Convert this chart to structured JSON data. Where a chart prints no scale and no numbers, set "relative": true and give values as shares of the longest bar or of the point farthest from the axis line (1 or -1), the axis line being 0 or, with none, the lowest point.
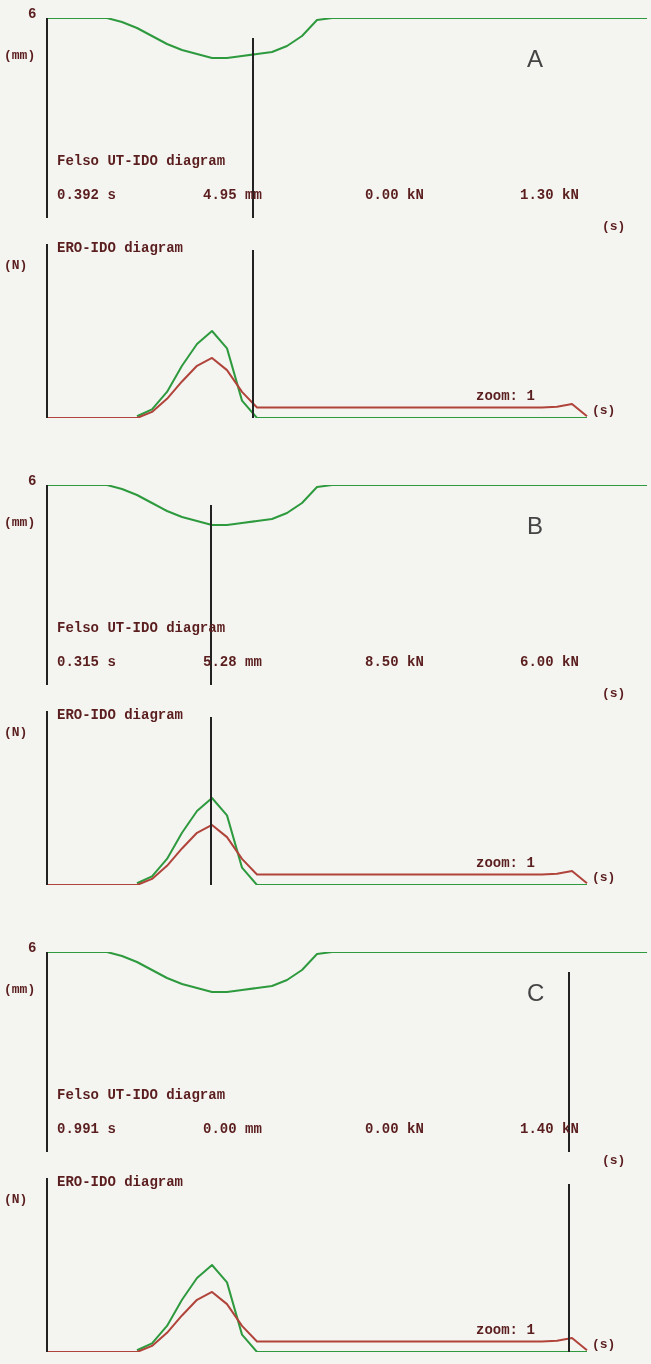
{
  "chart_data": [
    {
      "type": "line",
      "title": "Felso UT-IDO diagram",
      "xlabel": "(s)",
      "ylabel": "(mm)",
      "relative": true,
      "annotations": [
        "6",
        "A",
        "0.392 s",
        "4.95 mm",
        "0.00 kN",
        "1.30 kN"
      ],
      "categories": [
        null,
        null,
        null,
        null,
        null,
        null,
        null,
        null,
        null,
        null,
        null,
        null,
        null,
        null,
        null,
        null,
        null,
        null,
        null,
        null,
        null,
        null,
        null,
        null,
        null,
        null,
        null,
        null,
        null,
        null,
        null,
        null,
        null,
        null,
        null,
        null,
        null,
        null,
        null,
        null,
        null
      ],
      "series": [
        {
          "color": "#2e9a3e",
          "values": [
            1,
            1,
            1,
            1,
            1,
            0.98,
            0.95,
            0.91,
            0.87,
            0.84,
            0.82,
            0.8,
            0.8,
            0.81,
            0.82,
            0.83,
            0.86,
            0.91,
            0.99,
            1,
            1,
            1,
            1,
            1,
            1,
            1,
            1,
            1,
            1,
            1,
            1,
            1,
            1,
            1,
            1,
            1,
            1,
            1,
            1,
            1,
            1
          ]
        }
      ]
    },
    {
      "type": "line",
      "title": "ERO-IDO diagram",
      "xlabel": "(s)",
      "ylabel": "(N)",
      "relative": true,
      "annotations": [
        "zoom: 1"
      ],
      "categories": [
        null,
        null,
        null,
        null,
        null,
        null,
        null,
        null,
        null,
        null,
        null,
        null,
        null,
        null,
        null,
        null,
        null,
        null,
        null,
        null,
        null,
        null,
        null,
        null,
        null,
        null,
        null,
        null,
        null,
        null,
        null,
        null,
        null,
        null,
        null,
        null,
        null
      ],
      "series": [
        {
          "color": "#2e9a3e",
          "values": [
            null,
            null,
            null,
            null,
            null,
            null,
            0.02,
            0.1,
            0.3,
            0.6,
            0.85,
            1,
            0.8,
            0.2,
            0,
            0,
            0,
            0,
            0,
            0,
            0,
            0,
            0,
            0,
            0,
            0,
            0,
            0,
            0,
            0,
            0,
            0,
            0,
            0,
            0,
            0,
            0
          ]
        },
        {
          "color": "#b0443a",
          "values": [
            0,
            0,
            0,
            0,
            0,
            0,
            0,
            0.07,
            0.22,
            0.42,
            0.6,
            0.69,
            0.55,
            0.3,
            0.12,
            0.12,
            0.12,
            0.12,
            0.12,
            0.12,
            0.12,
            0.12,
            0.12,
            0.12,
            0.12,
            0.12,
            0.12,
            0.12,
            0.12,
            0.12,
            0.12,
            0.12,
            0.12,
            0.12,
            0.13,
            0.16,
            0.02
          ]
        }
      ]
    },
    {
      "type": "line",
      "title": "Felso UT-IDO diagram",
      "xlabel": "(s)",
      "ylabel": "(mm)",
      "relative": true,
      "annotations": [
        "6",
        "B",
        "0.315 s",
        "5.28 mm",
        "8.50 kN",
        "6.00 kN"
      ],
      "categories": [
        null,
        null,
        null,
        null,
        null,
        null,
        null,
        null,
        null,
        null,
        null,
        null,
        null,
        null,
        null,
        null,
        null,
        null,
        null,
        null,
        null,
        null,
        null,
        null,
        null,
        null,
        null,
        null,
        null,
        null,
        null,
        null,
        null,
        null,
        null,
        null,
        null,
        null,
        null,
        null,
        null
      ],
      "series": [
        {
          "color": "#2e9a3e",
          "values": [
            1,
            1,
            1,
            1,
            1,
            0.98,
            0.95,
            0.91,
            0.87,
            0.84,
            0.82,
            0.8,
            0.8,
            0.81,
            0.82,
            0.83,
            0.86,
            0.91,
            0.99,
            1,
            1,
            1,
            1,
            1,
            1,
            1,
            1,
            1,
            1,
            1,
            1,
            1,
            1,
            1,
            1,
            1,
            1,
            1,
            1,
            1,
            1
          ]
        }
      ]
    },
    {
      "type": "line",
      "title": "ERO-IDO diagram",
      "xlabel": "(s)",
      "ylabel": "(N)",
      "relative": true,
      "annotations": [
        "zoom: 1"
      ],
      "categories": [
        null,
        null,
        null,
        null,
        null,
        null,
        null,
        null,
        null,
        null,
        null,
        null,
        null,
        null,
        null,
        null,
        null,
        null,
        null,
        null,
        null,
        null,
        null,
        null,
        null,
        null,
        null,
        null,
        null,
        null,
        null,
        null,
        null,
        null,
        null,
        null,
        null
      ],
      "series": [
        {
          "color": "#2e9a3e",
          "values": [
            null,
            null,
            null,
            null,
            null,
            null,
            0.02,
            0.1,
            0.3,
            0.6,
            0.85,
            1,
            0.8,
            0.2,
            0,
            0,
            0,
            0,
            0,
            0,
            0,
            0,
            0,
            0,
            0,
            0,
            0,
            0,
            0,
            0,
            0,
            0,
            0,
            0,
            0,
            0,
            0
          ]
        },
        {
          "color": "#b0443a",
          "values": [
            0,
            0,
            0,
            0,
            0,
            0,
            0,
            0.07,
            0.22,
            0.42,
            0.6,
            0.69,
            0.55,
            0.3,
            0.12,
            0.12,
            0.12,
            0.12,
            0.12,
            0.12,
            0.12,
            0.12,
            0.12,
            0.12,
            0.12,
            0.12,
            0.12,
            0.12,
            0.12,
            0.12,
            0.12,
            0.12,
            0.12,
            0.12,
            0.13,
            0.16,
            0.02
          ]
        }
      ]
    },
    {
      "type": "line",
      "title": "Felso UT-IDO diagram",
      "xlabel": "(s)",
      "ylabel": "(mm)",
      "relative": true,
      "annotations": [
        "6",
        "C",
        "0.991 s",
        "0.00 mm",
        "0.00 kN",
        "1.40 kN"
      ],
      "categories": [
        null,
        null,
        null,
        null,
        null,
        null,
        null,
        null,
        null,
        null,
        null,
        null,
        null,
        null,
        null,
        null,
        null,
        null,
        null,
        null,
        null,
        null,
        null,
        null,
        null,
        null,
        null,
        null,
        null,
        null,
        null,
        null,
        null,
        null,
        null,
        null,
        null,
        null,
        null,
        null,
        null
      ],
      "series": [
        {
          "color": "#2e9a3e",
          "values": [
            1,
            1,
            1,
            1,
            1,
            0.98,
            0.95,
            0.91,
            0.87,
            0.84,
            0.82,
            0.8,
            0.8,
            0.81,
            0.82,
            0.83,
            0.86,
            0.91,
            0.99,
            1,
            1,
            1,
            1,
            1,
            1,
            1,
            1,
            1,
            1,
            1,
            1,
            1,
            1,
            1,
            1,
            1,
            1,
            1,
            1,
            1,
            1
          ]
        }
      ]
    },
    {
      "type": "line",
      "title": "ERO-IDO diagram",
      "xlabel": "(s)",
      "ylabel": "(N)",
      "relative": true,
      "annotations": [
        "zoom: 1"
      ],
      "categories": [
        null,
        null,
        null,
        null,
        null,
        null,
        null,
        null,
        null,
        null,
        null,
        null,
        null,
        null,
        null,
        null,
        null,
        null,
        null,
        null,
        null,
        null,
        null,
        null,
        null,
        null,
        null,
        null,
        null,
        null,
        null,
        null,
        null,
        null,
        null,
        null,
        null
      ],
      "series": [
        {
          "color": "#2e9a3e",
          "values": [
            null,
            null,
            null,
            null,
            null,
            null,
            0.02,
            0.1,
            0.3,
            0.6,
            0.85,
            1,
            0.8,
            0.2,
            0,
            0,
            0,
            0,
            0,
            0,
            0,
            0,
            0,
            0,
            0,
            0,
            0,
            0,
            0,
            0,
            0,
            0,
            0,
            0,
            0,
            0,
            0
          ]
        },
        {
          "color": "#b0443a",
          "values": [
            0,
            0,
            0,
            0,
            0,
            0,
            0,
            0.07,
            0.22,
            0.42,
            0.6,
            0.69,
            0.55,
            0.3,
            0.12,
            0.12,
            0.12,
            0.12,
            0.12,
            0.12,
            0.12,
            0.12,
            0.12,
            0.12,
            0.12,
            0.12,
            0.12,
            0.12,
            0.12,
            0.12,
            0.12,
            0.12,
            0.12,
            0.12,
            0.13,
            0.16,
            0.02
          ]
        }
      ]
    }
  ]
}
